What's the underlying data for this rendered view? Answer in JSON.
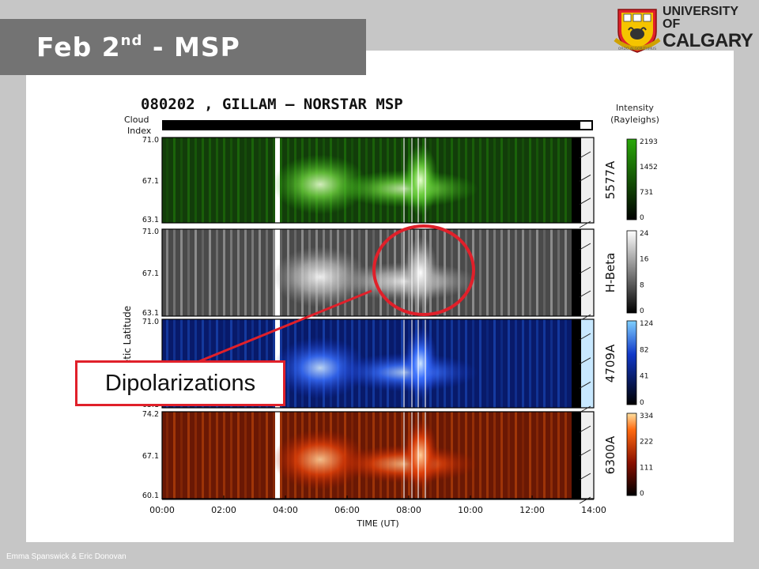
{
  "slide": {
    "title_main": "Feb 2",
    "title_sup": "nd",
    "title_rest": " - MSP",
    "footer": "Emma Spanswick & Eric Donovan",
    "callout_label": "Dipolarizations"
  },
  "logo": {
    "line1": "UNIVERSITY OF",
    "line2": "CALGARY",
    "motto": "ORDO ALGORITHMUS"
  },
  "plot": {
    "header": "080202 , GILLAM – NORSTAR MSP",
    "cloud_label_1": "Cloud",
    "cloud_label_2": "Index",
    "intensity_1": "Intensity",
    "intensity_2": "(Rayleighs)",
    "ylabel": "Magnetic Latitude",
    "xlabel": "TIME (UT)",
    "x_ticks": [
      "00:00",
      "02:00",
      "04:00",
      "06:00",
      "08:00",
      "10:00",
      "12:00",
      "14:00"
    ],
    "panels": [
      {
        "name": "5577A",
        "lat_ticks": [
          "71.0",
          "67.1",
          "63.1"
        ],
        "scale": [
          "2193",
          "1452",
          "731",
          "0"
        ],
        "color": "#2aa80a"
      },
      {
        "name": "H-Beta",
        "lat_ticks": [
          "71.0",
          "67.1",
          "63.1"
        ],
        "scale": [
          "24",
          "16",
          "8",
          "0"
        ],
        "color": "#ffffff"
      },
      {
        "name": "4709A",
        "lat_ticks": [
          "71.0",
          "67.1",
          "63.1"
        ],
        "scale": [
          "124",
          "82",
          "41",
          "0"
        ],
        "color": "#2b74ff"
      },
      {
        "name": "6300A",
        "lat_ticks": [
          "74.2",
          "67.1",
          "60.1"
        ],
        "scale": [
          "334",
          "222",
          "111",
          "0"
        ],
        "color": "#ff6a10"
      }
    ]
  },
  "colors": {
    "accent": "#e0202a",
    "banner": "#737373"
  }
}
